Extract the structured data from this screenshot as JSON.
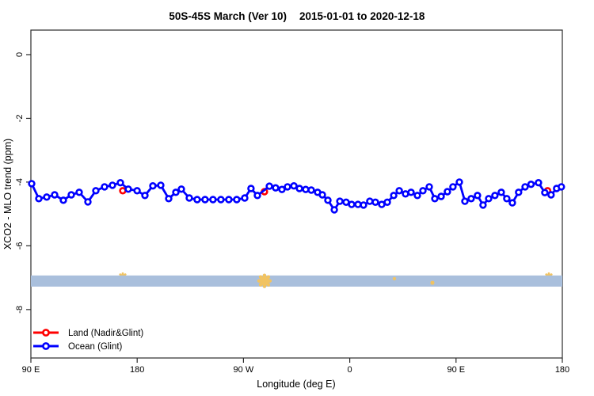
{
  "title": "50S-45S March (Ver 10)   2015-01-01 to 2020-12-18",
  "title_left": "50S-45S March (Ver 10)",
  "title_right": "2015-01-01 to 2020-12-18",
  "chart_data": {
    "type": "line",
    "title": "50S-45S March (Ver 10)   2015-01-01 to 2020-12-18",
    "xlabel": "Longitude (deg E)",
    "ylabel": "XCO2 - MLO trend (ppm)",
    "grid": false,
    "legend_position": "bottom-left-inside",
    "x_axis": {
      "range_deg": [
        90,
        540
      ],
      "ticks_deg": [
        90,
        180,
        270,
        360,
        450,
        540
      ],
      "tick_labels": [
        "90 E",
        "180",
        "90 W",
        "0",
        "90 E",
        "180"
      ],
      "note": "longitude axis wraps: 90E to 180 to 90W to 0 to 90E to 180"
    },
    "y_axis": {
      "range": [
        -9.52,
        0.77
      ],
      "ticks": [
        0,
        -2,
        -4,
        -6,
        -8
      ],
      "tick_labels": [
        "0",
        "-2",
        "-4",
        "-6",
        "-8"
      ]
    },
    "band": {
      "color": "#a9bfdc",
      "x_from_deg": 90,
      "x_to_deg": 540,
      "value_top": -6.93,
      "value_bottom": -7.28
    },
    "gold_markers": {
      "color": "#f1c361",
      "items": [
        {
          "deg": 167.8,
          "value": -6.98,
          "size": 9,
          "layer": "behind"
        },
        {
          "deg": 287.8,
          "value": -7.1,
          "size": 14,
          "layer": "front"
        },
        {
          "deg": 397.8,
          "value": -7.03,
          "size": 3,
          "layer": "front"
        },
        {
          "deg": 430.0,
          "value": -7.16,
          "size": 4,
          "layer": "front"
        },
        {
          "deg": 528.6,
          "value": -6.98,
          "size": 9,
          "layer": "behind"
        }
      ]
    },
    "series": [
      {
        "name": "Land (Nadir&Glint)",
        "color": "#ff0000",
        "marker": "open-circle",
        "line": false,
        "points": [
          [
            167.8,
            -4.27
          ],
          [
            287.8,
            -4.3
          ],
          [
            527.5,
            -4.27
          ]
        ]
      },
      {
        "name": "Ocean (Glint)",
        "color": "#0000ff",
        "marker": "open-circle",
        "line": true,
        "points": [
          [
            90.7,
            -4.05
          ],
          [
            96.7,
            -4.52
          ],
          [
            103.4,
            -4.47
          ],
          [
            110.1,
            -4.4
          ],
          [
            117.5,
            -4.57
          ],
          [
            124.2,
            -4.4
          ],
          [
            130.9,
            -4.32
          ],
          [
            138.3,
            -4.62
          ],
          [
            145.0,
            -4.27
          ],
          [
            152.4,
            -4.15
          ],
          [
            159.1,
            -4.1
          ],
          [
            165.8,
            -4.02
          ],
          [
            172.5,
            -4.22
          ],
          [
            179.9,
            -4.27
          ],
          [
            186.6,
            -4.42
          ],
          [
            193.3,
            -4.12
          ],
          [
            200.0,
            -4.1
          ],
          [
            206.7,
            -4.52
          ],
          [
            212.7,
            -4.32
          ],
          [
            217.4,
            -4.22
          ],
          [
            224.1,
            -4.5
          ],
          [
            230.8,
            -4.55
          ],
          [
            237.5,
            -4.55
          ],
          [
            244.2,
            -4.55
          ],
          [
            250.9,
            -4.55
          ],
          [
            257.6,
            -4.55
          ],
          [
            264.3,
            -4.55
          ],
          [
            271.1,
            -4.5
          ],
          [
            276.4,
            -4.2
          ],
          [
            281.8,
            -4.42
          ],
          [
            291.9,
            -4.13
          ],
          [
            297.2,
            -4.18
          ],
          [
            302.6,
            -4.23
          ],
          [
            307.3,
            -4.15
          ],
          [
            312.7,
            -4.12
          ],
          [
            317.4,
            -4.2
          ],
          [
            322.7,
            -4.23
          ],
          [
            327.4,
            -4.25
          ],
          [
            332.8,
            -4.32
          ],
          [
            336.8,
            -4.4
          ],
          [
            341.5,
            -4.57
          ],
          [
            346.9,
            -4.87
          ],
          [
            351.6,
            -4.6
          ],
          [
            356.9,
            -4.63
          ],
          [
            361.6,
            -4.7
          ],
          [
            367.0,
            -4.7
          ],
          [
            371.7,
            -4.72
          ],
          [
            377.0,
            -4.6
          ],
          [
            381.7,
            -4.63
          ],
          [
            387.1,
            -4.7
          ],
          [
            391.8,
            -4.63
          ],
          [
            397.2,
            -4.42
          ],
          [
            401.9,
            -4.27
          ],
          [
            407.2,
            -4.37
          ],
          [
            411.9,
            -4.32
          ],
          [
            417.3,
            -4.42
          ],
          [
            422.0,
            -4.27
          ],
          [
            427.3,
            -4.15
          ],
          [
            432.0,
            -4.52
          ],
          [
            437.4,
            -4.45
          ],
          [
            442.7,
            -4.3
          ],
          [
            447.4,
            -4.15
          ],
          [
            452.8,
            -4.0
          ],
          [
            457.5,
            -4.6
          ],
          [
            462.8,
            -4.52
          ],
          [
            468.2,
            -4.42
          ],
          [
            472.9,
            -4.72
          ],
          [
            477.6,
            -4.52
          ],
          [
            482.9,
            -4.42
          ],
          [
            488.3,
            -4.32
          ],
          [
            493.0,
            -4.52
          ],
          [
            497.7,
            -4.65
          ],
          [
            503.0,
            -4.32
          ],
          [
            508.5,
            -4.15
          ],
          [
            513.5,
            -4.07
          ],
          [
            519.8,
            -4.02
          ],
          [
            525.2,
            -4.33
          ],
          [
            530.5,
            -4.4
          ],
          [
            535.2,
            -4.2
          ],
          [
            539.2,
            -4.15
          ]
        ]
      }
    ],
    "legend": [
      {
        "label": "Land (Nadir&Glint)",
        "color": "#ff0000"
      },
      {
        "label": "Ocean (Glint)",
        "color": "#0000ff"
      }
    ]
  },
  "colors": {
    "ocean": "#0000ff",
    "land": "#ff0000",
    "band": "#a9bfdc",
    "gold": "#f1c361",
    "axis": "#2b2b2b"
  }
}
